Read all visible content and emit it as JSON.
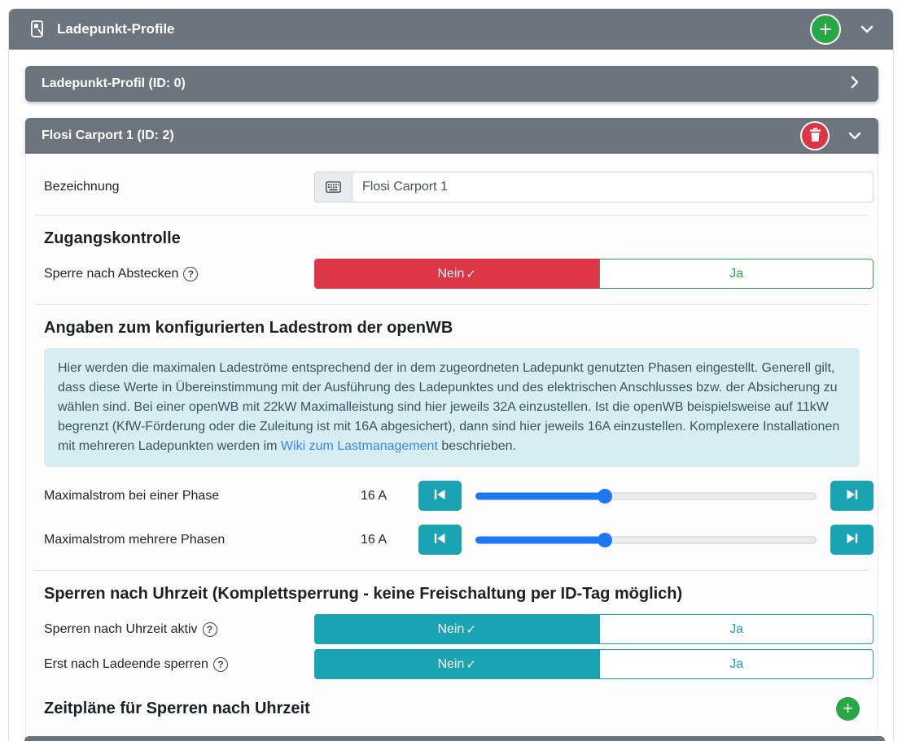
{
  "colors": {
    "gray": "#6c757d",
    "green": "#28a745",
    "red": "#dc3545",
    "teal": "#1aa3b3",
    "blue": "#1c78f2",
    "link_blue": "#3a87f0",
    "info_bg": "#d8edf2",
    "info_text": "#35565f"
  },
  "icons": {
    "plus": "+",
    "check": "✓",
    "help": "?"
  },
  "header": {
    "title": "Ladepunkt-Profile"
  },
  "profiles": [
    {
      "title": "Ladepunkt-Profil (ID: 0)",
      "collapsed": true
    },
    {
      "title": "Flosi Carport 1 (ID: 2)",
      "collapsed": false
    }
  ],
  "sections": {
    "name_row": {
      "label": "Bezeichnung",
      "value": "Flosi Carport 1"
    },
    "access": {
      "heading": "Zugangskontrolle",
      "row": {
        "label": "Sperre nach Abstecken",
        "no": "Nein",
        "yes": "Ja",
        "selected": "Nein"
      }
    },
    "current": {
      "heading": "Angaben zum konfigurierten Ladestrom der openWB",
      "info_text": "Hier werden die maximalen Ladeströme entsprechend der in dem zugeordneten Ladepunkt genutzten Phasen eingestellt. Generell gilt, dass diese Werte in Übereinstimmung mit der Ausführung des Ladepunktes und des elektrischen Anschlusses bzw. der Absicherung zu wählen sind. Bei einer openWB mit 22kW Maximalleistung sind hier jeweils 32A einzustellen. Ist die openWB beispielsweise auf 11kW begrenzt (KfW-Förderung oder die Zuleitung ist mit 16A abgesichert), dann sind hier jeweils 16A einzustellen. Komplexere Installationen mit mehreren Ladepunkten werden im ",
      "info_link": "Wiki zum Lastmanagement",
      "info_suffix": " beschrieben.",
      "sliders": [
        {
          "label": "Maximalstrom bei einer Phase",
          "value": "16 A",
          "percent": 38
        },
        {
          "label": "Maximalstrom mehrere Phasen",
          "value": "16 A",
          "percent": 38
        }
      ]
    },
    "time_lock": {
      "heading": "Sperren nach Uhrzeit (Komplettsperrung - keine Freischaltung per ID-Tag möglich)",
      "rows": [
        {
          "label": "Sperren nach Uhrzeit aktiv",
          "no": "Nein",
          "yes": "Ja",
          "selected": "Nein"
        },
        {
          "label": "Erst nach Ladeende sperren",
          "no": "Nein",
          "yes": "Ja",
          "selected": "Nein"
        }
      ]
    },
    "schedules": {
      "heading": "Zeitpläne für Sperren nach Uhrzeit"
    }
  }
}
